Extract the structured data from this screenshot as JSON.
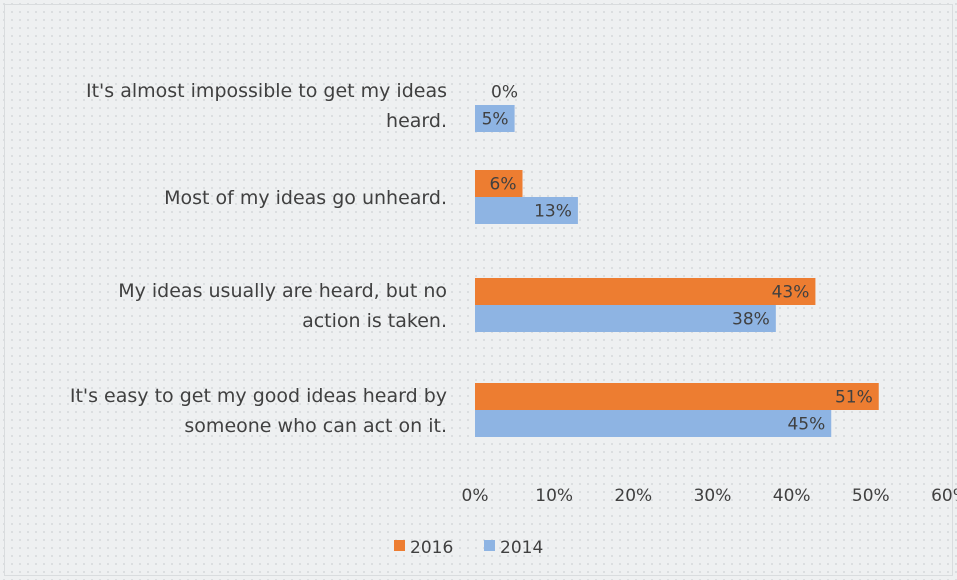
{
  "chart_data": {
    "type": "bar",
    "orientation": "horizontal",
    "categories": [
      [
        "It's almost impossible to get my ideas",
        "heard."
      ],
      [
        "Most of my ideas go unheard."
      ],
      [
        "My ideas usually are heard, but no",
        "action is taken."
      ],
      [
        "It's easy to get my good ideas heard by",
        "someone who can act on it."
      ]
    ],
    "series": [
      {
        "name": "2016",
        "color": "#ed7d31",
        "values": [
          0,
          6,
          43,
          51
        ],
        "labels": [
          "0%",
          "6%",
          "43%",
          "51%"
        ]
      },
      {
        "name": "2014",
        "color": "#8eb4e3",
        "values": [
          5,
          13,
          38,
          45
        ],
        "labels": [
          "5%",
          "13%",
          "38%",
          "45%"
        ]
      }
    ],
    "x_ticks": [
      "0%",
      "10%",
      "20%",
      "30%",
      "40%",
      "50%",
      "60%"
    ],
    "xlim": [
      0,
      60
    ],
    "grid": false,
    "legend_position": "bottom"
  }
}
